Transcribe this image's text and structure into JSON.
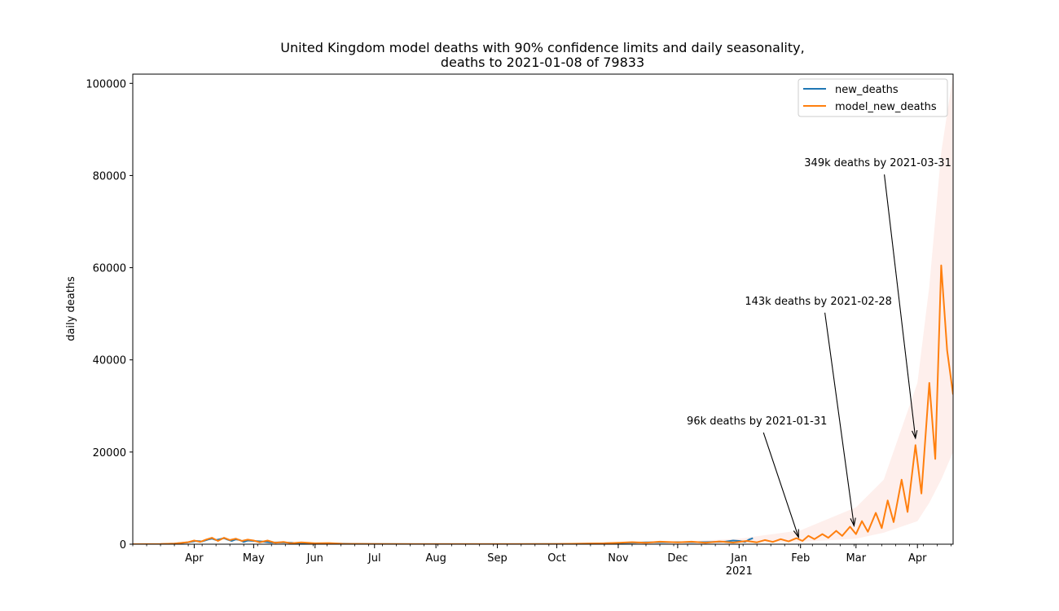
{
  "chart_data": {
    "type": "line",
    "title_line1": "United Kingdom model deaths with 90% confidence limits and daily seasonality,",
    "title_line2": "deaths to 2021-01-08 of 79833",
    "ylabel": "daily deaths",
    "xlabel": "",
    "ylim": [
      0,
      102000
    ],
    "x_range": [
      "2020-03-01",
      "2021-04-19"
    ],
    "y_ticks": [
      0,
      20000,
      40000,
      60000,
      80000,
      100000
    ],
    "y_tick_labels": [
      "0",
      "20000",
      "40000",
      "60000",
      "80000",
      "100000"
    ],
    "x_ticks": [
      {
        "date": "2020-04-01",
        "label": "Apr"
      },
      {
        "date": "2020-05-01",
        "label": "May"
      },
      {
        "date": "2020-06-01",
        "label": "Jun"
      },
      {
        "date": "2020-07-01",
        "label": "Jul"
      },
      {
        "date": "2020-08-01",
        "label": "Aug"
      },
      {
        "date": "2020-09-01",
        "label": "Sep"
      },
      {
        "date": "2020-10-01",
        "label": "Oct"
      },
      {
        "date": "2020-11-01",
        "label": "Nov"
      },
      {
        "date": "2020-12-01",
        "label": "Dec"
      },
      {
        "date": "2021-01-01",
        "label": "Jan"
      },
      {
        "date": "2021-02-01",
        "label": "Feb"
      },
      {
        "date": "2021-03-01",
        "label": "Mar"
      },
      {
        "date": "2021-04-01",
        "label": "Apr"
      }
    ],
    "year_label": {
      "date": "2021-01-01",
      "label": "2021"
    },
    "legend": {
      "position": "upper right",
      "entries": [
        {
          "name": "new_deaths",
          "color": "#1f77b4"
        },
        {
          "name": "model_new_deaths",
          "color": "#ff7f0e"
        }
      ]
    },
    "series": [
      {
        "name": "new_deaths",
        "color": "#1f77b4",
        "points": [
          [
            "2020-03-01",
            0
          ],
          [
            "2020-03-15",
            20
          ],
          [
            "2020-03-22",
            150
          ],
          [
            "2020-03-29",
            400
          ],
          [
            "2020-04-02",
            700
          ],
          [
            "2020-04-05",
            600
          ],
          [
            "2020-04-08",
            1000
          ],
          [
            "2020-04-10",
            1200
          ],
          [
            "2020-04-12",
            900
          ],
          [
            "2020-04-14",
            1100
          ],
          [
            "2020-04-16",
            1300
          ],
          [
            "2020-04-18",
            950
          ],
          [
            "2020-04-20",
            700
          ],
          [
            "2020-04-22",
            1050
          ],
          [
            "2020-04-24",
            900
          ],
          [
            "2020-04-26",
            500
          ],
          [
            "2020-04-28",
            800
          ],
          [
            "2020-05-01",
            700
          ],
          [
            "2020-05-05",
            600
          ],
          [
            "2020-05-10",
            350
          ],
          [
            "2020-05-15",
            400
          ],
          [
            "2020-05-20",
            300
          ],
          [
            "2020-05-25",
            150
          ],
          [
            "2020-06-01",
            150
          ],
          [
            "2020-06-10",
            130
          ],
          [
            "2020-06-20",
            80
          ],
          [
            "2020-07-01",
            50
          ],
          [
            "2020-08-01",
            10
          ],
          [
            "2020-09-01",
            10
          ],
          [
            "2020-10-01",
            50
          ],
          [
            "2020-10-15",
            100
          ],
          [
            "2020-11-01",
            250
          ],
          [
            "2020-11-15",
            400
          ],
          [
            "2020-12-01",
            450
          ],
          [
            "2020-12-15",
            450
          ],
          [
            "2020-12-25",
            550
          ],
          [
            "2020-12-29",
            800
          ],
          [
            "2021-01-01",
            700
          ],
          [
            "2021-01-04",
            500
          ],
          [
            "2021-01-06",
            1000
          ],
          [
            "2021-01-08",
            1300
          ]
        ]
      },
      {
        "name": "model_new_deaths",
        "color": "#ff7f0e",
        "points": [
          [
            "2020-03-01",
            0
          ],
          [
            "2020-03-15",
            30
          ],
          [
            "2020-03-22",
            150
          ],
          [
            "2020-03-29",
            450
          ],
          [
            "2020-04-01",
            800
          ],
          [
            "2020-04-04",
            500
          ],
          [
            "2020-04-07",
            1000
          ],
          [
            "2020-04-10",
            1400
          ],
          [
            "2020-04-13",
            700
          ],
          [
            "2020-04-16",
            1400
          ],
          [
            "2020-04-19",
            900
          ],
          [
            "2020-04-22",
            1200
          ],
          [
            "2020-04-25",
            700
          ],
          [
            "2020-04-28",
            1000
          ],
          [
            "2020-05-01",
            800
          ],
          [
            "2020-05-04",
            400
          ],
          [
            "2020-05-08",
            800
          ],
          [
            "2020-05-12",
            300
          ],
          [
            "2020-05-16",
            500
          ],
          [
            "2020-05-20",
            200
          ],
          [
            "2020-05-25",
            400
          ],
          [
            "2020-06-01",
            200
          ],
          [
            "2020-06-08",
            250
          ],
          [
            "2020-06-15",
            80
          ],
          [
            "2020-07-01",
            30
          ],
          [
            "2020-08-01",
            10
          ],
          [
            "2020-09-01",
            20
          ],
          [
            "2020-10-01",
            60
          ],
          [
            "2020-10-15",
            150
          ],
          [
            "2020-10-25",
            200
          ],
          [
            "2020-11-01",
            300
          ],
          [
            "2020-11-08",
            450
          ],
          [
            "2020-11-15",
            300
          ],
          [
            "2020-11-22",
            550
          ],
          [
            "2020-12-01",
            400
          ],
          [
            "2020-12-08",
            550
          ],
          [
            "2020-12-15",
            300
          ],
          [
            "2020-12-22",
            600
          ],
          [
            "2020-12-29",
            350
          ],
          [
            "2021-01-05",
            700
          ],
          [
            "2021-01-10",
            400
          ],
          [
            "2021-01-14",
            900
          ],
          [
            "2021-01-18",
            500
          ],
          [
            "2021-01-22",
            1100
          ],
          [
            "2021-01-26",
            600
          ],
          [
            "2021-01-30",
            1300
          ],
          [
            "2021-02-02",
            700
          ],
          [
            "2021-02-05",
            1800
          ],
          [
            "2021-02-08",
            1100
          ],
          [
            "2021-02-12",
            2200
          ],
          [
            "2021-02-15",
            1400
          ],
          [
            "2021-02-19",
            2900
          ],
          [
            "2021-02-22",
            1800
          ],
          [
            "2021-02-26",
            3800
          ],
          [
            "2021-03-01",
            2200
          ],
          [
            "2021-03-04",
            5000
          ],
          [
            "2021-03-07",
            2700
          ],
          [
            "2021-03-11",
            6800
          ],
          [
            "2021-03-14",
            3500
          ],
          [
            "2021-03-17",
            9500
          ],
          [
            "2021-03-20",
            4800
          ],
          [
            "2021-03-24",
            14000
          ],
          [
            "2021-03-27",
            7000
          ],
          [
            "2021-03-31",
            21500
          ],
          [
            "2021-04-03",
            11000
          ],
          [
            "2021-04-07",
            35000
          ],
          [
            "2021-04-10",
            18500
          ],
          [
            "2021-04-13",
            60500
          ],
          [
            "2021-04-16",
            42000
          ],
          [
            "2021-04-19",
            32500
          ]
        ]
      }
    ],
    "confidence_band": {
      "color": "#fde2dc",
      "upper": [
        [
          "2020-12-01",
          500
        ],
        [
          "2021-01-01",
          1200
        ],
        [
          "2021-02-01",
          3000
        ],
        [
          "2021-03-01",
          8000
        ],
        [
          "2021-03-15",
          14000
        ],
        [
          "2021-04-01",
          35000
        ],
        [
          "2021-04-07",
          56000
        ],
        [
          "2021-04-13",
          85000
        ],
        [
          "2021-04-19",
          102000
        ]
      ],
      "lower": [
        [
          "2020-12-01",
          200
        ],
        [
          "2021-01-01",
          300
        ],
        [
          "2021-02-01",
          500
        ],
        [
          "2021-03-01",
          1200
        ],
        [
          "2021-03-15",
          2500
        ],
        [
          "2021-04-01",
          5000
        ],
        [
          "2021-04-07",
          9000
        ],
        [
          "2021-04-13",
          14000
        ],
        [
          "2021-04-19",
          20000
        ]
      ]
    },
    "annotations": [
      {
        "text": "96k deaths by 2021-01-31",
        "text_date": "2021-01-10",
        "text_y": 26000,
        "arrow_date": "2021-01-31",
        "arrow_y": 1500
      },
      {
        "text": "143k deaths by 2021-02-28",
        "text_date": "2021-02-10",
        "text_y": 52000,
        "arrow_date": "2021-02-28",
        "arrow_y": 4000
      },
      {
        "text": "349k deaths by 2021-03-31",
        "text_date": "2021-03-12",
        "text_y": 82000,
        "arrow_date": "2021-03-31",
        "arrow_y": 23000
      }
    ]
  }
}
